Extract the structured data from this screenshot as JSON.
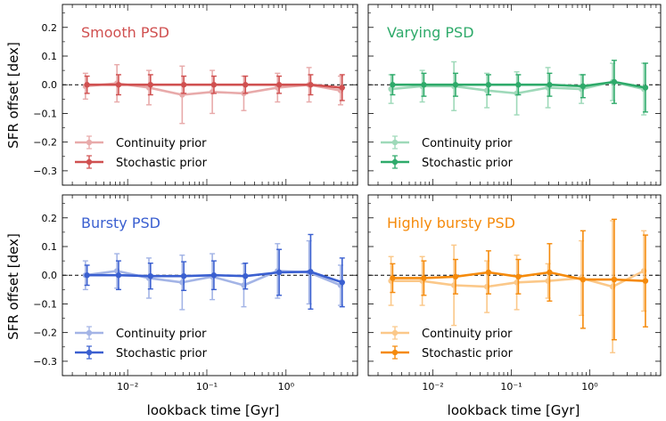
{
  "chart_data": {
    "type": "line",
    "x": [
      0.003,
      0.0075,
      0.019,
      0.05,
      0.12,
      0.3,
      0.8,
      2.0,
      5.0
    ],
    "x_scale": "log",
    "xlim": [
      0.0015,
      8.0
    ],
    "ylim": [
      -0.35,
      0.28
    ],
    "xlabel": "lookback time [Gyr]",
    "ylabel": "SFR offset [dex]",
    "x_tick_labels": [
      "10⁻²",
      "10⁻¹",
      "10⁰"
    ],
    "y_tick_labels": [
      "0.2",
      "0.1",
      "0.0",
      "−0.1",
      "−0.2",
      "−0.3"
    ],
    "legend_position": "lower-left",
    "panels": [
      {
        "title": "Smooth PSD",
        "color": "#d05050",
        "light_color": "#e8aaaa",
        "series": [
          {
            "name": "Continuity prior",
            "values": [
              -0.005,
              0.005,
              -0.01,
              -0.035,
              -0.025,
              -0.03,
              -0.01,
              0.0,
              -0.02
            ],
            "errors": [
              0.045,
              0.065,
              0.06,
              0.1,
              0.075,
              0.06,
              0.05,
              0.06,
              0.05
            ]
          },
          {
            "name": "Stochastic prior",
            "values": [
              0.0,
              0.0,
              0.0,
              0.0,
              0.0,
              0.0,
              0.0,
              0.0,
              -0.01
            ],
            "errors": [
              0.03,
              0.035,
              0.035,
              0.03,
              0.03,
              0.03,
              0.03,
              0.035,
              0.045
            ]
          }
        ]
      },
      {
        "title": "Varying PSD",
        "color": "#2eaa6a",
        "light_color": "#9ed9b9",
        "series": [
          {
            "name": "Continuity prior",
            "values": [
              -0.015,
              -0.005,
              -0.005,
              -0.02,
              -0.03,
              -0.01,
              -0.015,
              0.01,
              -0.015
            ],
            "errors": [
              0.05,
              0.055,
              0.085,
              0.06,
              0.075,
              0.07,
              0.05,
              0.065,
              0.09
            ]
          },
          {
            "name": "Stochastic prior",
            "values": [
              0.0,
              0.0,
              0.0,
              0.0,
              0.0,
              0.0,
              -0.005,
              0.01,
              -0.01
            ],
            "errors": [
              0.035,
              0.04,
              0.04,
              0.035,
              0.035,
              0.04,
              0.04,
              0.075,
              0.085
            ]
          }
        ]
      },
      {
        "title": "Bursty PSD",
        "color": "#3a5fd0",
        "light_color": "#a3b4e6",
        "series": [
          {
            "name": "Continuity prior",
            "values": [
              0.0,
              0.015,
              -0.01,
              -0.025,
              -0.005,
              -0.035,
              0.015,
              0.01,
              -0.035
            ],
            "errors": [
              0.05,
              0.06,
              0.07,
              0.095,
              0.08,
              0.075,
              0.095,
              0.11,
              0.07
            ]
          },
          {
            "name": "Stochastic prior",
            "values": [
              0.0,
              0.0,
              -0.003,
              -0.003,
              0.0,
              -0.003,
              0.01,
              0.012,
              -0.025
            ],
            "errors": [
              0.035,
              0.05,
              0.045,
              0.05,
              0.05,
              0.045,
              0.08,
              0.13,
              0.085
            ]
          }
        ]
      },
      {
        "title": "Highly bursty PSD",
        "color": "#f58a0b",
        "light_color": "#fbc889",
        "series": [
          {
            "name": "Continuity prior",
            "values": [
              -0.02,
              -0.02,
              -0.035,
              -0.04,
              -0.025,
              -0.02,
              -0.01,
              -0.04,
              0.015
            ],
            "errors": [
              0.085,
              0.085,
              0.14,
              0.09,
              0.095,
              0.06,
              0.13,
              0.23,
              0.14
            ]
          },
          {
            "name": "Stochastic prior",
            "values": [
              -0.01,
              -0.01,
              -0.005,
              0.01,
              -0.005,
              0.01,
              -0.015,
              -0.015,
              -0.02
            ],
            "errors": [
              0.05,
              0.06,
              0.06,
              0.075,
              0.06,
              0.1,
              0.17,
              0.21,
              0.16
            ]
          }
        ]
      }
    ]
  }
}
